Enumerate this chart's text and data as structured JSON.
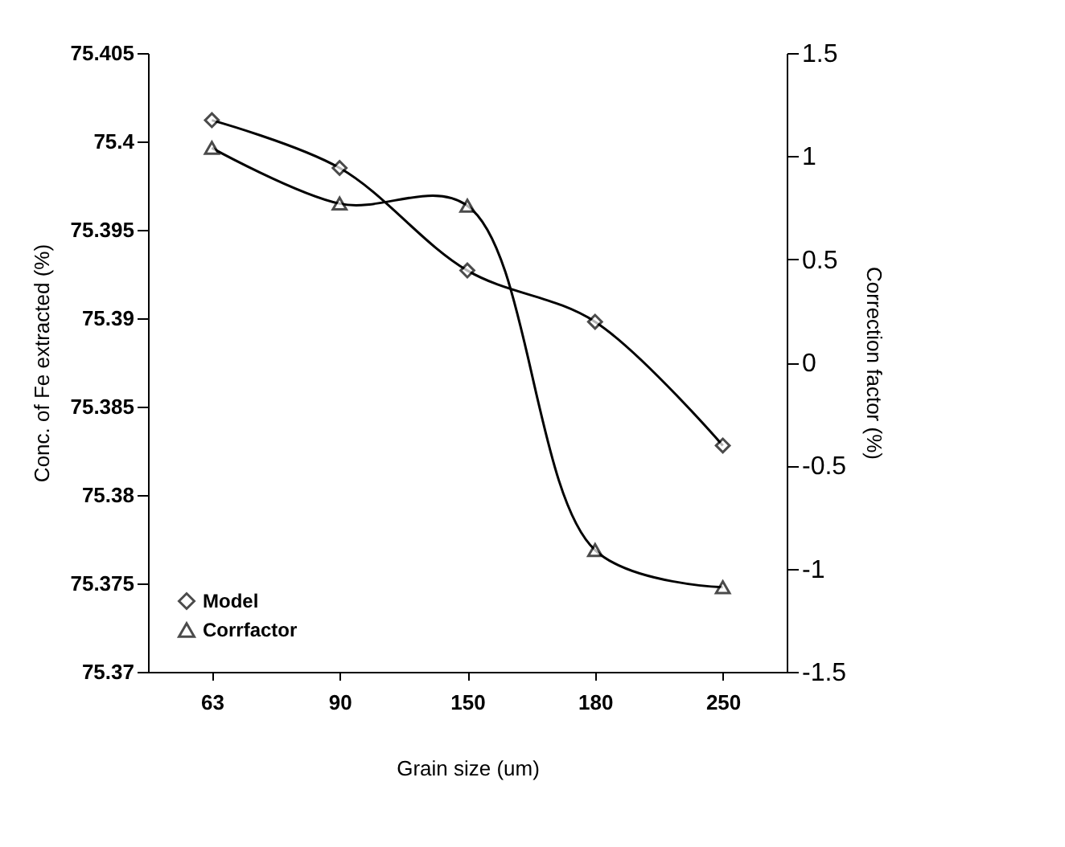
{
  "chart_data": {
    "type": "line",
    "xlabel": "Grain size (um)",
    "ylabel": "Conc. of Fe extracted (%)",
    "y2label": "Correction factor (%)",
    "categories": [
      "63",
      "90",
      "150",
      "180",
      "250"
    ],
    "series": [
      {
        "name": "Model",
        "color": "#000000",
        "marker": "diamond",
        "values": [
          75.4012,
          75.3985,
          75.3927,
          75.3898,
          75.3828
        ]
      },
      {
        "name": "Corrfactor",
        "color": "#000000",
        "marker": "triangle",
        "axis": "y2",
        "values": [
          1.04,
          0.77,
          0.76,
          -0.91,
          -1.09
        ]
      }
    ],
    "ylim": [
      75.37,
      75.405
    ],
    "yticks": [
      75.37,
      75.375,
      75.38,
      75.385,
      75.39,
      75.395,
      75.4,
      75.405
    ],
    "y2lim": [
      -1.5,
      1.5
    ],
    "y2ticks": [
      -1.5,
      -1,
      -0.5,
      0,
      0.5,
      1,
      1.5
    ],
    "grid": false,
    "legend": "bottom left"
  }
}
